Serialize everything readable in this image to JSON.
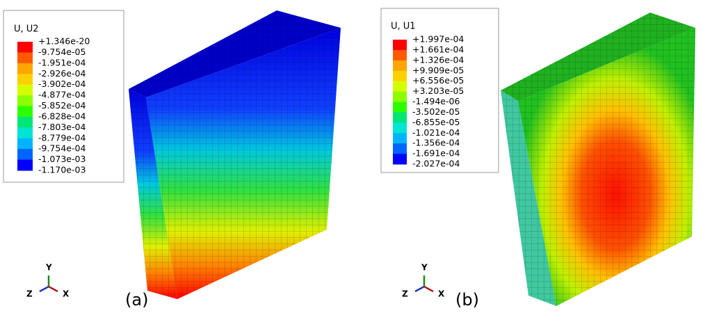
{
  "panels": [
    {
      "legend": {
        "title": "U, U2",
        "labels": [
          "+1.346e-20",
          "-9.754e-05",
          "-1.951e-04",
          "-2.926e-04",
          "-3.902e-04",
          "-4.877e-04",
          "-5.852e-04",
          "-6.828e-04",
          "-7.803e-04",
          "-8.779e-04",
          "-9.754e-04",
          "-1.073e-03",
          "-1.170e-03"
        ]
      },
      "triad": {
        "y": "Y",
        "z": "Z",
        "x": "X"
      },
      "label": "(a)"
    },
    {
      "legend": {
        "title": "U, U1",
        "labels": [
          "+1.997e-04",
          "+1.661e-04",
          "+1.326e-04",
          "+9.909e-05",
          "+6.556e-05",
          "+3.203e-05",
          "-1.494e-06",
          "-3.502e-05",
          "-6.855e-05",
          "-1.021e-04",
          "-1.356e-04",
          "-1.691e-04",
          "-2.027e-04"
        ]
      },
      "triad": {
        "y": "Y",
        "z": "Z",
        "x": "X"
      },
      "label": "(b)"
    }
  ]
}
